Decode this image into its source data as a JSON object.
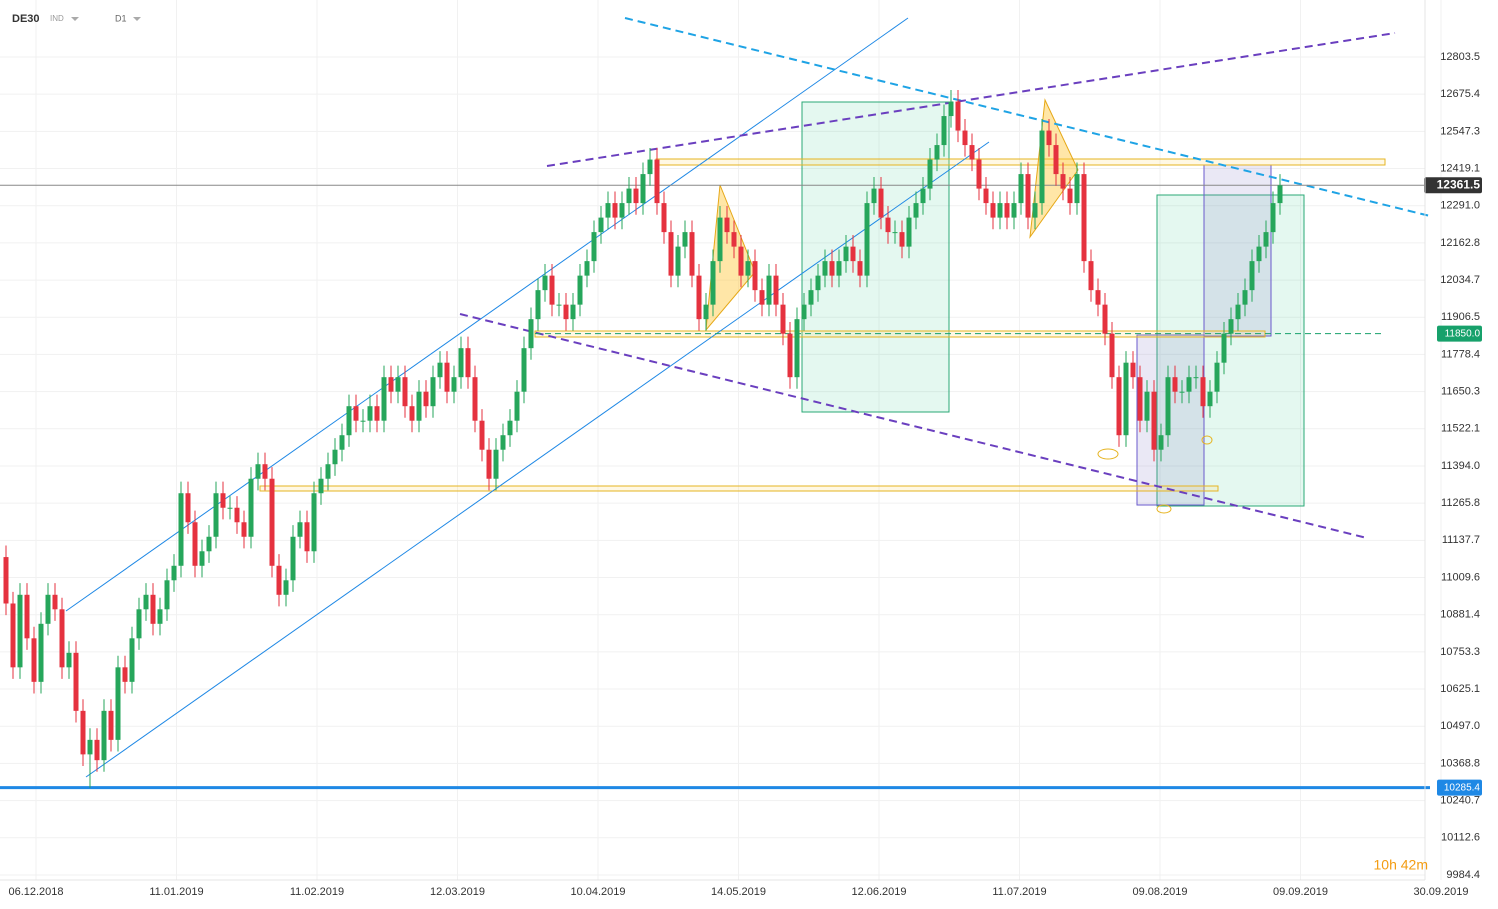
{
  "chart_data": {
    "type": "candlestick",
    "symbol": "DE30",
    "market": "IND",
    "interval": "D1",
    "countdown": "10h 42m",
    "up_color": "#26a65b",
    "down_color": "#e5323f",
    "ylim": [
      9967,
      13000
    ],
    "yticks": [
      12803.5,
      12675.4,
      12547.3,
      12419.1,
      {
        "value": 12291.0,
        "label": "12291.0"
      },
      12162.8,
      12034.7,
      11906.5,
      11778.4,
      11650.3,
      11522.1,
      {
        "value": 11394.0,
        "label": "11394.0"
      },
      11265.8,
      11137.7,
      11009.6,
      10881.4,
      10753.3,
      10625.1,
      {
        "value": 10497.0,
        "label": "10497.0"
      },
      10368.8,
      10240.7,
      10112.6,
      9984.4
    ],
    "xticks": [
      "06.12.2018",
      "11.01.2019",
      "11.02.2019",
      "12.03.2019",
      "10.04.2019",
      "14.05.2019",
      "12.06.2019",
      "11.07.2019",
      "09.08.2019",
      "09.09.2019",
      "30.09.2019"
    ],
    "current_price": 12361.5,
    "levels": [
      {
        "value": 10285.4,
        "color": "#1e88e5"
      },
      {
        "value": 11850,
        "label": "11850.0",
        "color": "#17a16b"
      }
    ],
    "candles": [
      [
        11080,
        11120,
        10880,
        10920
      ],
      [
        10920,
        10960,
        10660,
        10700
      ],
      [
        10700,
        10990,
        10660,
        10950
      ],
      [
        10950,
        10990,
        10760,
        10800
      ],
      [
        10800,
        10840,
        10610,
        10650
      ],
      [
        10650,
        10890,
        10610,
        10850
      ],
      [
        10850,
        10990,
        10810,
        10950
      ],
      [
        10950,
        10990,
        10860,
        10900
      ],
      [
        10900,
        10940,
        10660,
        10700
      ],
      [
        10700,
        10790,
        10660,
        10750
      ],
      [
        10750,
        10790,
        10510,
        10550
      ],
      [
        10550,
        10590,
        10360,
        10400
      ],
      [
        10400,
        10490,
        10285,
        10450
      ],
      [
        10450,
        10490,
        10340,
        10380
      ],
      [
        10380,
        10590,
        10340,
        10550
      ],
      [
        10550,
        10590,
        10410,
        10450
      ],
      [
        10450,
        10740,
        10410,
        10700
      ],
      [
        10700,
        10740,
        10610,
        10650
      ],
      [
        10650,
        10840,
        10610,
        10800
      ],
      [
        10800,
        10940,
        10760,
        10900
      ],
      [
        10900,
        10990,
        10860,
        10950
      ],
      [
        10950,
        10990,
        10810,
        10850
      ],
      [
        10850,
        10940,
        10810,
        10900
      ],
      [
        10900,
        11040,
        10860,
        11000
      ],
      [
        11000,
        11090,
        10960,
        11050
      ],
      [
        11050,
        11340,
        11010,
        11300
      ],
      [
        11300,
        11340,
        11160,
        11200
      ],
      [
        11200,
        11240,
        11010,
        11050
      ],
      [
        11050,
        11140,
        11010,
        11100
      ],
      [
        11100,
        11190,
        11060,
        11150
      ],
      [
        11150,
        11340,
        11110,
        11300
      ],
      [
        11300,
        11340,
        11210,
        11250
      ],
      [
        11250,
        11290,
        11210,
        11250
      ],
      [
        11250,
        11290,
        11160,
        11200
      ],
      [
        11200,
        11240,
        11110,
        11150
      ],
      [
        11150,
        11390,
        11110,
        11350
      ],
      [
        11350,
        11440,
        11310,
        11400
      ],
      [
        11400,
        11440,
        11310,
        11350
      ],
      [
        11350,
        11390,
        11010,
        11050
      ],
      [
        11050,
        11090,
        10910,
        10950
      ],
      [
        10950,
        11040,
        10910,
        11000
      ],
      [
        11000,
        11190,
        10960,
        11150
      ],
      [
        11150,
        11240,
        11110,
        11200
      ],
      [
        11200,
        11240,
        11060,
        11100
      ],
      [
        11100,
        11340,
        11060,
        11300
      ],
      [
        11300,
        11390,
        11260,
        11350
      ],
      [
        11350,
        11440,
        11310,
        11400
      ],
      [
        11400,
        11490,
        11360,
        11450
      ],
      [
        11450,
        11540,
        11410,
        11500
      ],
      [
        11500,
        11640,
        11460,
        11600
      ],
      [
        11600,
        11640,
        11510,
        11550
      ],
      [
        11550,
        11590,
        11510,
        11550
      ],
      [
        11550,
        11640,
        11510,
        11600
      ],
      [
        11600,
        11640,
        11510,
        11550
      ],
      [
        11550,
        11740,
        11510,
        11700
      ],
      [
        11700,
        11740,
        11610,
        11650
      ],
      [
        11650,
        11740,
        11610,
        11700
      ],
      [
        11700,
        11740,
        11560,
        11600
      ],
      [
        11600,
        11640,
        11510,
        11550
      ],
      [
        11550,
        11690,
        11510,
        11650
      ],
      [
        11650,
        11690,
        11560,
        11600
      ],
      [
        11600,
        11740,
        11560,
        11700
      ],
      [
        11700,
        11790,
        11660,
        11750
      ],
      [
        11750,
        11790,
        11610,
        11650
      ],
      [
        11650,
        11740,
        11610,
        11700
      ],
      [
        11700,
        11840,
        11660,
        11800
      ],
      [
        11800,
        11840,
        11660,
        11700
      ],
      [
        11700,
        11740,
        11510,
        11550
      ],
      [
        11550,
        11590,
        11410,
        11450
      ],
      [
        11450,
        11490,
        11310,
        11350
      ],
      [
        11350,
        11490,
        11310,
        11450
      ],
      [
        11450,
        11540,
        11410,
        11500
      ],
      [
        11500,
        11590,
        11460,
        11550
      ],
      [
        11550,
        11690,
        11510,
        11650
      ],
      [
        11650,
        11840,
        11610,
        11800
      ],
      [
        11800,
        11940,
        11760,
        11900
      ],
      [
        11900,
        12040,
        11860,
        12000
      ],
      [
        12000,
        12090,
        11960,
        12050
      ],
      [
        12050,
        12090,
        11910,
        11950
      ],
      [
        11950,
        11990,
        11910,
        11950
      ],
      [
        11950,
        11990,
        11860,
        11900
      ],
      [
        11900,
        11990,
        11860,
        11950
      ],
      [
        11950,
        12090,
        11910,
        12050
      ],
      [
        12050,
        12140,
        12010,
        12100
      ],
      [
        12100,
        12240,
        12060,
        12200
      ],
      [
        12200,
        12290,
        12160,
        12250
      ],
      [
        12250,
        12340,
        12210,
        12300
      ],
      [
        12300,
        12340,
        12210,
        12250
      ],
      [
        12250,
        12340,
        12210,
        12300
      ],
      [
        12300,
        12390,
        12260,
        12350
      ],
      [
        12350,
        12390,
        12260,
        12300
      ],
      [
        12300,
        12440,
        12260,
        12400
      ],
      [
        12400,
        12490,
        12360,
        12450
      ],
      [
        12450,
        12490,
        12260,
        12300
      ],
      [
        12300,
        12340,
        12160,
        12200
      ],
      [
        12200,
        12240,
        12010,
        12050
      ],
      [
        12050,
        12190,
        12010,
        12150
      ],
      [
        12150,
        12240,
        12110,
        12200
      ],
      [
        12200,
        12240,
        12010,
        12050
      ],
      [
        12050,
        12090,
        11860,
        11900
      ],
      [
        11900,
        11990,
        11860,
        11950
      ],
      [
        11950,
        12140,
        11910,
        12100
      ],
      [
        12100,
        12290,
        12060,
        12250
      ],
      [
        12250,
        12290,
        12160,
        12200
      ],
      [
        12200,
        12240,
        12110,
        12150
      ],
      [
        12150,
        12190,
        12010,
        12050
      ],
      [
        12050,
        12140,
        12010,
        12100
      ],
      [
        12100,
        12140,
        11960,
        12000
      ],
      [
        12000,
        12040,
        11910,
        11950
      ],
      [
        11950,
        12090,
        11910,
        12050
      ],
      [
        12050,
        12090,
        11910,
        11950
      ],
      [
        11950,
        11990,
        11810,
        11850
      ],
      [
        11850,
        11890,
        11660,
        11700
      ],
      [
        11700,
        11940,
        11660,
        11900
      ],
      [
        11900,
        11990,
        11860,
        11950
      ],
      [
        11950,
        12040,
        11910,
        12000
      ],
      [
        12000,
        12090,
        11960,
        12050
      ],
      [
        12050,
        12140,
        12010,
        12100
      ],
      [
        12100,
        12140,
        12010,
        12050
      ],
      [
        12050,
        12140,
        12010,
        12100
      ],
      [
        12100,
        12190,
        12060,
        12150
      ],
      [
        12150,
        12190,
        12060,
        12100
      ],
      [
        12100,
        12140,
        12010,
        12050
      ],
      [
        12050,
        12340,
        12010,
        12300
      ],
      [
        12300,
        12390,
        12260,
        12350
      ],
      [
        12350,
        12390,
        12210,
        12250
      ],
      [
        12250,
        12290,
        12160,
        12200
      ],
      [
        12200,
        12240,
        12160,
        12200
      ],
      [
        12200,
        12240,
        12110,
        12150
      ],
      [
        12150,
        12290,
        12110,
        12250
      ],
      [
        12250,
        12340,
        12210,
        12300
      ],
      [
        12300,
        12390,
        12260,
        12350
      ],
      [
        12350,
        12490,
        12310,
        12450
      ],
      [
        12450,
        12540,
        12410,
        12500
      ],
      [
        12500,
        12640,
        12460,
        12600
      ],
      [
        12600,
        12690,
        12560,
        12650
      ],
      [
        12650,
        12690,
        12510,
        12550
      ],
      [
        12550,
        12590,
        12460,
        12500
      ],
      [
        12500,
        12540,
        12410,
        12450
      ],
      [
        12450,
        12490,
        12310,
        12350
      ],
      [
        12350,
        12390,
        12260,
        12300
      ],
      [
        12300,
        12340,
        12210,
        12250
      ],
      [
        12250,
        12340,
        12210,
        12300
      ],
      [
        12300,
        12340,
        12210,
        12250
      ],
      [
        12250,
        12340,
        12210,
        12300
      ],
      [
        12300,
        12440,
        12260,
        12400
      ],
      [
        12400,
        12440,
        12210,
        12250
      ],
      [
        12250,
        12340,
        12210,
        12300
      ],
      [
        12300,
        12590,
        12260,
        12550
      ],
      [
        12550,
        12590,
        12460,
        12500
      ],
      [
        12500,
        12540,
        12360,
        12400
      ],
      [
        12400,
        12440,
        12310,
        12350
      ],
      [
        12350,
        12390,
        12260,
        12300
      ],
      [
        12300,
        12440,
        12260,
        12400
      ],
      [
        12400,
        12440,
        12060,
        12100
      ],
      [
        12100,
        12140,
        11960,
        12000
      ],
      [
        12000,
        12040,
        11910,
        11950
      ],
      [
        11950,
        11990,
        11810,
        11850
      ],
      [
        11850,
        11890,
        11660,
        11700
      ],
      [
        11700,
        11740,
        11460,
        11500
      ],
      [
        11500,
        11790,
        11460,
        11750
      ],
      [
        11750,
        11790,
        11660,
        11700
      ],
      [
        11700,
        11740,
        11510,
        11550
      ],
      [
        11550,
        11690,
        11510,
        11650
      ],
      [
        11650,
        11690,
        11410,
        11450
      ],
      [
        11450,
        11540,
        11410,
        11500
      ],
      [
        11500,
        11740,
        11460,
        11700
      ],
      [
        11700,
        11740,
        11610,
        11650
      ],
      [
        11650,
        11690,
        11610,
        11650
      ],
      [
        11650,
        11740,
        11610,
        11700
      ],
      [
        11700,
        11740,
        11660,
        11700
      ],
      [
        11700,
        11740,
        11560,
        11600
      ],
      [
        11600,
        11690,
        11560,
        11650
      ],
      [
        11650,
        11790,
        11610,
        11750
      ],
      [
        11750,
        11890,
        11710,
        11850
      ],
      [
        11850,
        11940,
        11810,
        11900
      ],
      [
        11900,
        11990,
        11860,
        11950
      ],
      [
        11950,
        12040,
        11910,
        12000
      ],
      [
        12000,
        12140,
        11960,
        12100
      ],
      [
        12100,
        12190,
        12060,
        12150
      ],
      [
        12150,
        12240,
        12110,
        12200
      ],
      [
        12200,
        12340,
        12160,
        12300
      ],
      [
        12300,
        12400,
        12260,
        12361.5
      ]
    ]
  }
}
